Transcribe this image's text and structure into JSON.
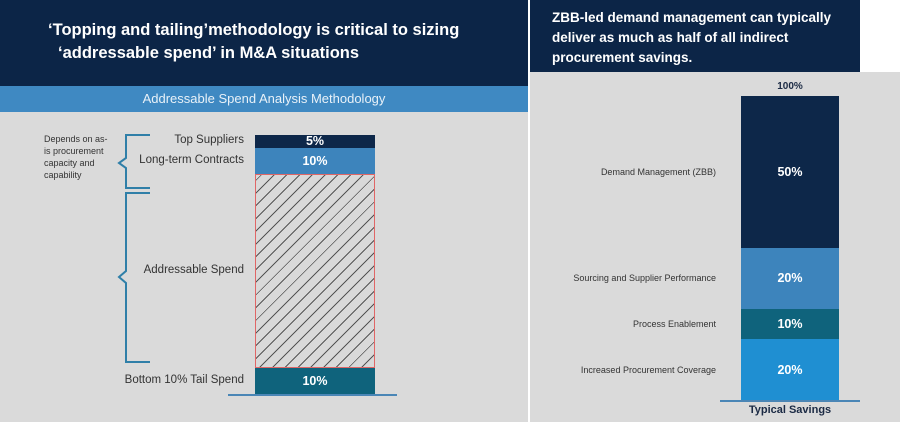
{
  "left_slide": {
    "title_line1": "‘Topping and tailing’methodology is critical to sizing",
    "title_line2": "‘addressable spend’ in M&A situations",
    "band_title": "Addressable Spend Analysis Methodology",
    "brace_note": "Depends on as-is procurement capacity and capability"
  },
  "right_slide": {
    "title": "ZBB-led demand management can typically deliver as much as half of all indirect procurement savings."
  },
  "chart_data": [
    {
      "type": "bar",
      "stacked": true,
      "title": "Addressable Spend Analysis Methodology",
      "segments_top_to_bottom": [
        {
          "name": "Top Suppliers",
          "value": 5,
          "label": "5%",
          "color": "#0d2749"
        },
        {
          "name": "Long-term Contracts",
          "value": 10,
          "label": "10%",
          "color": "#3d84bc"
        },
        {
          "name": "Addressable Spend",
          "value": 75,
          "label": "",
          "color": "hatched",
          "border": "#e06666"
        },
        {
          "name": "Bottom 10% Tail Spend",
          "value": 10,
          "label": "10%",
          "color": "#0f637c"
        }
      ]
    },
    {
      "type": "bar",
      "stacked": true,
      "xlabel": "Typical Savings",
      "total_label": "100%",
      "segments_top_to_bottom": [
        {
          "name": "Demand Management (ZBB)",
          "value": 50,
          "label": "50%",
          "color": "#0d2749"
        },
        {
          "name": "Sourcing and Supplier Performance",
          "value": 20,
          "label": "20%",
          "color": "#3d84bc"
        },
        {
          "name": "Process Enablement",
          "value": 10,
          "label": "10%",
          "color": "#0f637c"
        },
        {
          "name": "Increased Procurement Coverage",
          "value": 20,
          "label": "20%",
          "color": "#1f8fd2"
        }
      ]
    }
  ]
}
